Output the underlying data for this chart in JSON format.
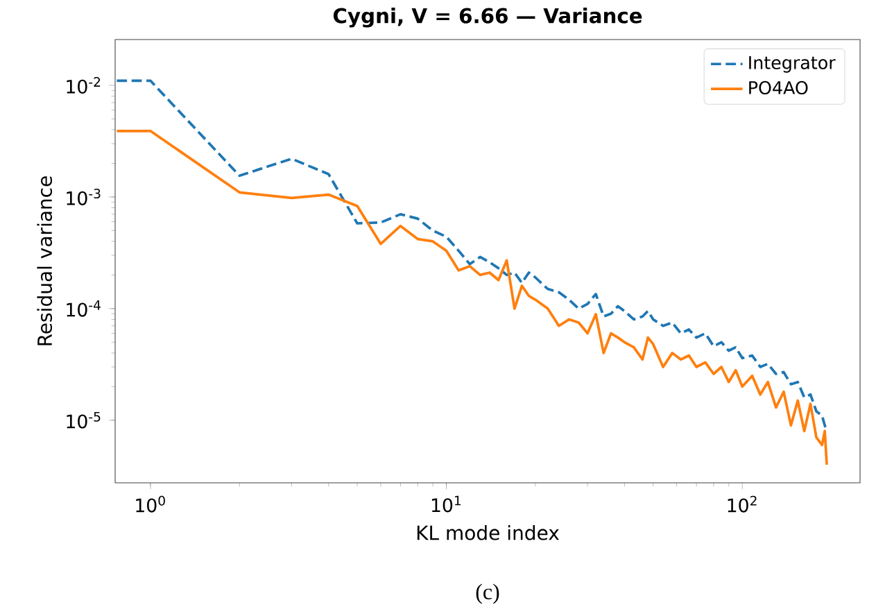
{
  "chart_data": {
    "type": "line",
    "title": "Cygni, V = 6.66 — Variance",
    "xlabel": "KL mode index",
    "ylabel": "Residual variance",
    "annotations": [
      "(c)"
    ],
    "log": "xy",
    "grid": false,
    "legend": "top right",
    "marker": "none",
    "xlim": [
      0.76,
      250
    ],
    "ylim": [
      2.75e-06,
      0.0257
    ],
    "xticks": [
      {
        "value": 1,
        "label": "10$^{0}$"
      },
      {
        "value": 10,
        "label": "10$^{1}$"
      },
      {
        "value": 100,
        "label": "10$^{2}$"
      }
    ],
    "yticks": [
      {
        "value": 1e-05,
        "label": "10$^{-5}$"
      },
      {
        "value": 0.0001,
        "label": "10$^{-4}$"
      },
      {
        "value": 0.001,
        "label": "10$^{-3}$"
      },
      {
        "value": 0.01,
        "label": "10$^{-2}$"
      }
    ],
    "x": [
      0.77,
      1,
      2,
      3,
      4,
      5,
      6,
      7,
      8,
      9,
      10,
      11,
      12,
      13,
      14,
      15,
      16,
      17,
      18,
      19,
      20,
      22,
      24,
      26,
      28,
      30,
      32,
      34,
      36,
      38,
      40,
      43,
      46,
      48,
      50,
      54,
      58,
      62,
      66,
      70,
      75,
      80,
      85,
      90,
      95,
      100,
      108,
      115,
      122,
      130,
      138,
      146,
      154,
      162,
      170,
      178,
      186,
      190,
      193
    ],
    "series": [
      {
        "name": "Integrator",
        "color": "#1f77b4",
        "line_style": "dashed",
        "values": [
          0.011,
          0.011,
          0.00155,
          0.0022,
          0.0016,
          0.00058,
          0.00059,
          0.0007,
          0.00064,
          0.0005,
          0.00044,
          0.00033,
          0.00025,
          0.00029,
          0.00026,
          0.00023,
          0.0002,
          0.00021,
          0.00017,
          0.00021,
          0.00019,
          0.00015,
          0.00014,
          0.00012,
          0.0001,
          0.00011,
          0.000135,
          8.5e-05,
          9e-05,
          0.000105,
          9.5e-05,
          8e-05,
          8.5e-05,
          9.5e-05,
          8e-05,
          7e-05,
          7.5e-05,
          6e-05,
          6.5e-05,
          5.5e-05,
          6e-05,
          4.6e-05,
          5e-05,
          4.2e-05,
          4.5e-05,
          3.6e-05,
          3.8e-05,
          3e-05,
          3.2e-05,
          2.6e-05,
          2.7e-05,
          2.1e-05,
          2.2e-05,
          1.6e-05,
          1.7e-05,
          1.2e-05,
          1.1e-05,
          9e-06,
          8e-06
        ]
      },
      {
        "name": "PO4AO",
        "color": "#ff7f0e",
        "line_style": "solid",
        "values": [
          0.0039,
          0.0039,
          0.0011,
          0.00098,
          0.00105,
          0.00083,
          0.00038,
          0.00055,
          0.00042,
          0.0004,
          0.00033,
          0.00022,
          0.00024,
          0.0002,
          0.00021,
          0.00018,
          0.00027,
          0.0001,
          0.00016,
          0.00013,
          0.00012,
          0.0001,
          7e-05,
          8e-05,
          7.5e-05,
          6e-05,
          8.9e-05,
          4e-05,
          6e-05,
          5.5e-05,
          5e-05,
          4.5e-05,
          3.5e-05,
          5.5e-05,
          4.8e-05,
          3e-05,
          4e-05,
          3.5e-05,
          3.8e-05,
          3e-05,
          3.3e-05,
          2.6e-05,
          3e-05,
          2.2e-05,
          2.8e-05,
          2e-05,
          2.5e-05,
          1.7e-05,
          2.2e-05,
          1.3e-05,
          1.8e-05,
          9e-06,
          1.5e-05,
          8e-06,
          1.4e-05,
          7e-06,
          6e-06,
          8e-06,
          4e-06
        ]
      }
    ]
  }
}
